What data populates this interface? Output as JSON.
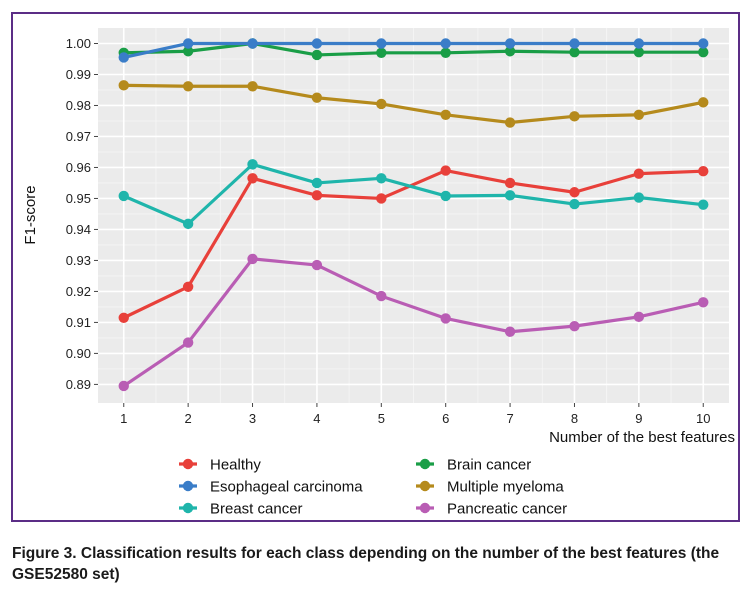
{
  "figure": {
    "caption": "Figure 3. Classification results for each class depending on the number of the best features (the GSE52580 set)"
  },
  "chart_data": {
    "type": "line",
    "title": "",
    "xlabel": "Number of the best features",
    "ylabel": "F1-score",
    "x": [
      1,
      2,
      3,
      4,
      5,
      6,
      7,
      8,
      9,
      10
    ],
    "x_tick_labels": [
      "1",
      "2",
      "3",
      "4",
      "5",
      "6",
      "7",
      "8",
      "9",
      "10"
    ],
    "ylim": [
      0.884,
      1.005
    ],
    "y_ticks": [
      0.89,
      0.9,
      0.91,
      0.92,
      0.93,
      0.94,
      0.95,
      0.96,
      0.97,
      0.98,
      0.99,
      1.0
    ],
    "y_tick_labels": [
      "0.89",
      "0.90",
      "0.91",
      "0.92",
      "0.93",
      "0.94",
      "0.95",
      "0.96",
      "0.97",
      "0.98",
      "0.99",
      "1.00"
    ],
    "grid": true,
    "legend_position": "bottom",
    "series": [
      {
        "name": "Healthy",
        "color": "#e8403a",
        "values": [
          0.9115,
          0.9215,
          0.9565,
          0.951,
          0.95,
          0.959,
          0.955,
          0.952,
          0.958,
          0.9588
        ]
      },
      {
        "name": "Brain cancer",
        "color": "#1a9e47",
        "values": [
          0.997,
          0.9975,
          1.0,
          0.9963,
          0.997,
          0.997,
          0.9975,
          0.9972,
          0.9972,
          0.9972
        ]
      },
      {
        "name": "Esophageal carcinoma",
        "color": "#3a7dc8",
        "values": [
          0.9955,
          1.0,
          1.0,
          1.0,
          1.0,
          1.0,
          1.0,
          1.0,
          1.0,
          1.0
        ]
      },
      {
        "name": "Multiple myeloma",
        "color": "#b58a1c",
        "values": [
          0.9865,
          0.9862,
          0.9862,
          0.9825,
          0.9805,
          0.977,
          0.9745,
          0.9765,
          0.977,
          0.981
        ]
      },
      {
        "name": "Breast cancer",
        "color": "#1fb5ab",
        "values": [
          0.9508,
          0.9418,
          0.961,
          0.955,
          0.9565,
          0.9508,
          0.951,
          0.9482,
          0.9503,
          0.948
        ]
      },
      {
        "name": "Pancreatic cancer",
        "color": "#b95db4",
        "values": [
          0.8895,
          0.9035,
          0.9305,
          0.9285,
          0.9185,
          0.9113,
          0.907,
          0.9088,
          0.9118,
          0.9165
        ]
      }
    ]
  }
}
